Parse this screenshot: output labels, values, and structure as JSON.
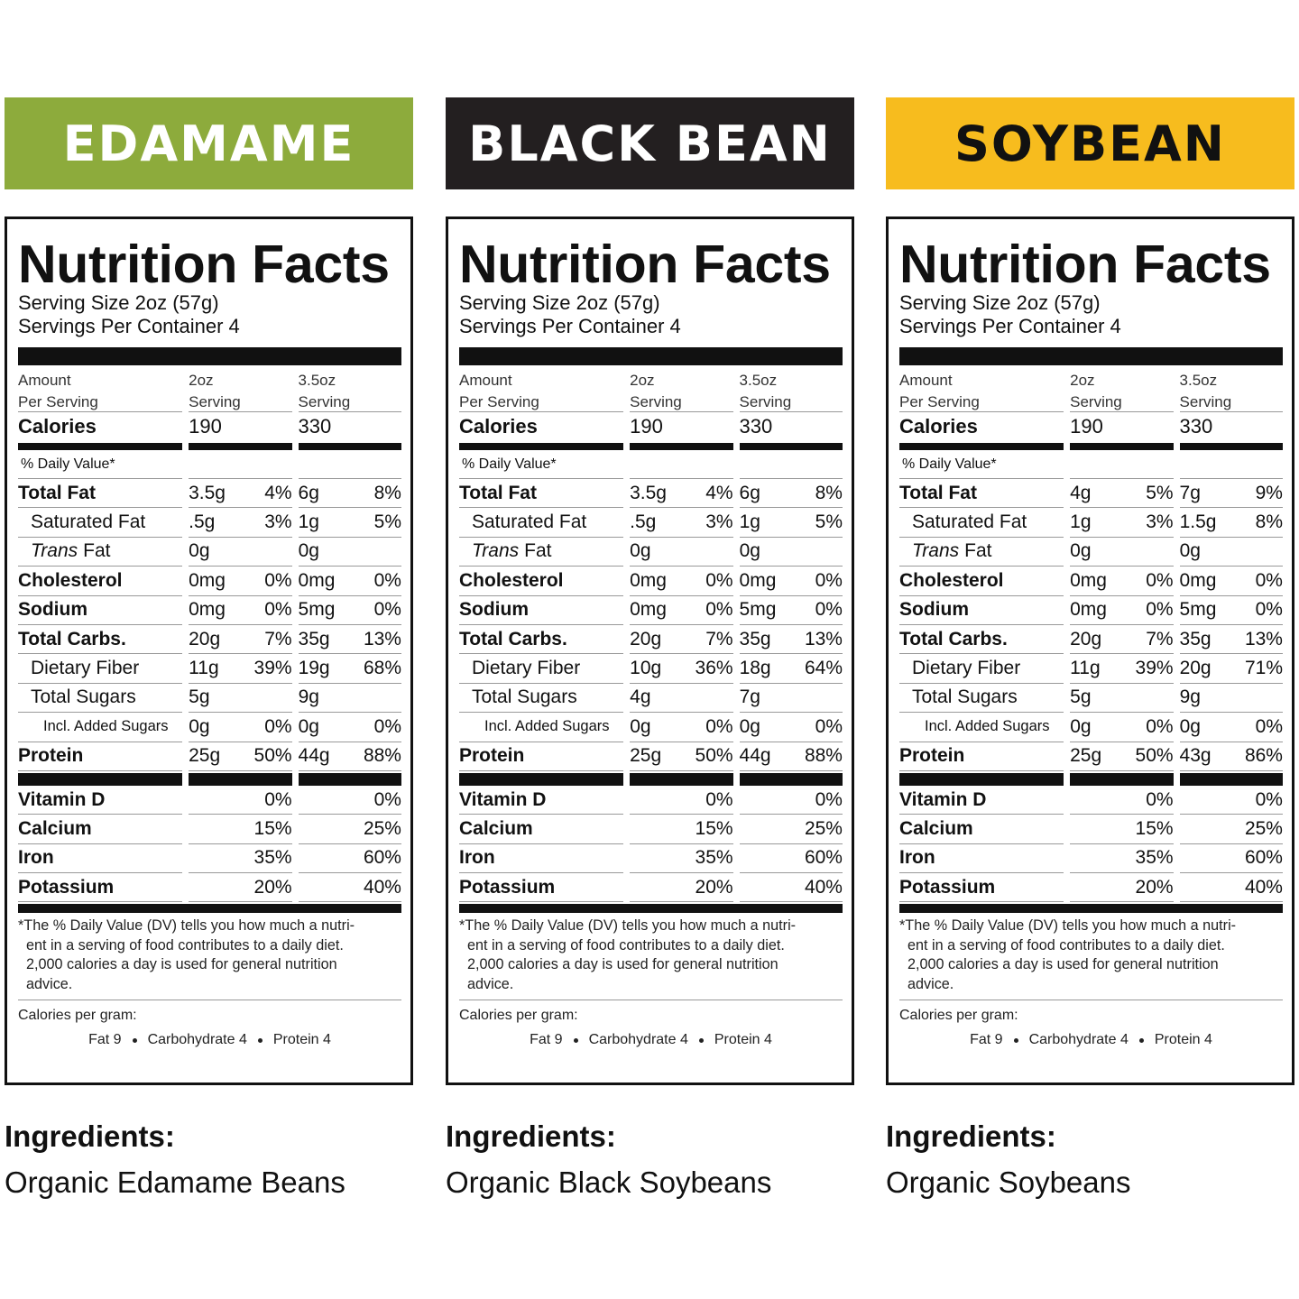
{
  "panels": [
    {
      "name": "EDAMAME",
      "label": {
        "title": "Nutrition Facts",
        "serving_size": "Serving Size 2oz (57g)",
        "servings": "Servings Per Container 4",
        "header": [
          [
            "Amount",
            "Per Serving"
          ],
          [
            "2oz",
            "Serving"
          ],
          [
            "3.5oz",
            "Serving"
          ]
        ],
        "calories": {
          "label": "Calories",
          "values": [
            "190",
            "330"
          ]
        },
        "dv_heading": "% Daily Value*",
        "nutrients": [
          {
            "label": "Total Fat",
            "values": [
              [
                "3.5g",
                "4%"
              ],
              [
                "6g",
                "8%"
              ]
            ],
            "sub": [
              {
                "label": "Saturated Fat",
                "values": [
                  [
                    ".5g",
                    "3%"
                  ],
                  [
                    "1g",
                    "5%"
                  ]
                ]
              },
              {
                "label_parts": [
                  "Trans",
                  "Fat"
                ],
                "values": [
                  [
                    "0g",
                    null
                  ],
                  [
                    "0g",
                    null
                  ]
                ]
              }
            ]
          },
          {
            "label": "Cholesterol",
            "values": [
              [
                "0mg",
                "0%"
              ],
              [
                "0mg",
                "0%"
              ]
            ]
          },
          {
            "label": "Sodium",
            "values": [
              [
                "0mg",
                "0%"
              ],
              [
                "5mg",
                "0%"
              ]
            ]
          },
          {
            "label": "Total Carbs.",
            "values": [
              [
                "20g",
                "7%"
              ],
              [
                "35g",
                "13%"
              ]
            ],
            "sub": [
              {
                "label": "Dietary Fiber",
                "values": [
                  [
                    "11g",
                    "39%"
                  ],
                  [
                    "19g",
                    "68%"
                  ]
                ]
              },
              {
                "label": "Total Sugars",
                "values": [
                  [
                    "5g",
                    null
                  ],
                  [
                    "9g",
                    null
                  ]
                ],
                "sub": [
                  {
                    "label": "Incl. Added Sugars",
                    "values": [
                      [
                        "0g",
                        "0%"
                      ],
                      [
                        "0g",
                        "0%"
                      ]
                    ]
                  }
                ]
              }
            ]
          },
          {
            "label": "Protein",
            "values": [
              [
                "25g",
                "50%"
              ],
              [
                "44g",
                "88%"
              ]
            ]
          }
        ],
        "vitamins": [
          {
            "label": "Vitamin D",
            "values": [
              "0%",
              "0%"
            ]
          },
          {
            "label": "Calcium",
            "values": [
              "15%",
              "25%"
            ]
          },
          {
            "label": "Iron",
            "values": [
              "35%",
              "60%"
            ]
          },
          {
            "label": "Potassium",
            "values": [
              "20%",
              "40%"
            ]
          }
        ],
        "footnote": [
          "*The % Daily Value (DV) tells you how much a nutri-",
          "ent in a serving of food contributes to a daily diet.",
          "2,000 calories a day is used for general nutrition",
          "advice."
        ],
        "calories_per_gram": {
          "label": "Calories per gram:",
          "items": [
            "Fat 9",
            "Carbohydrate 4",
            "Protein 4"
          ]
        }
      },
      "ingredients": {
        "heading": "Ingredients:",
        "text": "Organic Edamame Beans"
      }
    },
    {
      "name": "BLACK BEAN",
      "label": {
        "title": "Nutrition Facts",
        "serving_size": "Serving Size 2oz (57g)",
        "servings": "Servings Per Container 4",
        "header": [
          [
            "Amount",
            "Per Serving"
          ],
          [
            "2oz",
            "Serving"
          ],
          [
            "3.5oz",
            "Serving"
          ]
        ],
        "calories": {
          "label": "Calories",
          "values": [
            "190",
            "330"
          ]
        },
        "dv_heading": "% Daily Value*",
        "nutrients": [
          {
            "label": "Total Fat",
            "values": [
              [
                "3.5g",
                "4%"
              ],
              [
                "6g",
                "8%"
              ]
            ],
            "sub": [
              {
                "label": "Saturated Fat",
                "values": [
                  [
                    ".5g",
                    "3%"
                  ],
                  [
                    "1g",
                    "5%"
                  ]
                ]
              },
              {
                "label_parts": [
                  "Trans",
                  "Fat"
                ],
                "values": [
                  [
                    "0g",
                    null
                  ],
                  [
                    "0g",
                    null
                  ]
                ]
              }
            ]
          },
          {
            "label": "Cholesterol",
            "values": [
              [
                "0mg",
                "0%"
              ],
              [
                "0mg",
                "0%"
              ]
            ]
          },
          {
            "label": "Sodium",
            "values": [
              [
                "0mg",
                "0%"
              ],
              [
                "5mg",
                "0%"
              ]
            ]
          },
          {
            "label": "Total Carbs.",
            "values": [
              [
                "20g",
                "7%"
              ],
              [
                "35g",
                "13%"
              ]
            ],
            "sub": [
              {
                "label": "Dietary Fiber",
                "values": [
                  [
                    "10g",
                    "36%"
                  ],
                  [
                    "18g",
                    "64%"
                  ]
                ]
              },
              {
                "label": "Total Sugars",
                "values": [
                  [
                    "4g",
                    null
                  ],
                  [
                    "7g",
                    null
                  ]
                ],
                "sub": [
                  {
                    "label": "Incl. Added Sugars",
                    "values": [
                      [
                        "0g",
                        "0%"
                      ],
                      [
                        "0g",
                        "0%"
                      ]
                    ]
                  }
                ]
              }
            ]
          },
          {
            "label": "Protein",
            "values": [
              [
                "25g",
                "50%"
              ],
              [
                "44g",
                "88%"
              ]
            ]
          }
        ],
        "vitamins": [
          {
            "label": "Vitamin D",
            "values": [
              "0%",
              "0%"
            ]
          },
          {
            "label": "Calcium",
            "values": [
              "15%",
              "25%"
            ]
          },
          {
            "label": "Iron",
            "values": [
              "35%",
              "60%"
            ]
          },
          {
            "label": "Potassium",
            "values": [
              "20%",
              "40%"
            ]
          }
        ],
        "footnote": [
          "*The % Daily Value (DV) tells you how much a nutri-",
          "ent in a serving of food contributes to a daily diet.",
          "2,000 calories a day is used for general nutrition",
          "advice."
        ],
        "calories_per_gram": {
          "label": "Calories per gram:",
          "items": [
            "Fat 9",
            "Carbohydrate 4",
            "Protein 4"
          ]
        }
      },
      "ingredients": {
        "heading": "Ingredients:",
        "text": "Organic Black Soybeans"
      }
    },
    {
      "name": "SOYBEAN",
      "label": {
        "title": "Nutrition Facts",
        "serving_size": "Serving Size 2oz (57g)",
        "servings": "Servings Per Container 4",
        "header": [
          [
            "Amount",
            "Per Serving"
          ],
          [
            "2oz",
            "Serving"
          ],
          [
            "3.5oz",
            "Serving"
          ]
        ],
        "calories": {
          "label": "Calories",
          "values": [
            "190",
            "330"
          ]
        },
        "dv_heading": "% Daily Value*",
        "nutrients": [
          {
            "label": "Total Fat",
            "values": [
              [
                "4g",
                "5%"
              ],
              [
                "7g",
                "9%"
              ]
            ],
            "sub": [
              {
                "label": "Saturated Fat",
                "values": [
                  [
                    "1g",
                    "3%"
                  ],
                  [
                    "1.5g",
                    "8%"
                  ]
                ]
              },
              {
                "label_parts": [
                  "Trans",
                  "Fat"
                ],
                "values": [
                  [
                    "0g",
                    null
                  ],
                  [
                    "0g",
                    null
                  ]
                ]
              }
            ]
          },
          {
            "label": "Cholesterol",
            "values": [
              [
                "0mg",
                "0%"
              ],
              [
                "0mg",
                "0%"
              ]
            ]
          },
          {
            "label": "Sodium",
            "values": [
              [
                "0mg",
                "0%"
              ],
              [
                "5mg",
                "0%"
              ]
            ]
          },
          {
            "label": "Total Carbs.",
            "values": [
              [
                "20g",
                "7%"
              ],
              [
                "35g",
                "13%"
              ]
            ],
            "sub": [
              {
                "label": "Dietary Fiber",
                "values": [
                  [
                    "11g",
                    "39%"
                  ],
                  [
                    "20g",
                    "71%"
                  ]
                ]
              },
              {
                "label": "Total Sugars",
                "values": [
                  [
                    "5g",
                    null
                  ],
                  [
                    "9g",
                    null
                  ]
                ],
                "sub": [
                  {
                    "label": "Incl. Added Sugars",
                    "values": [
                      [
                        "0g",
                        "0%"
                      ],
                      [
                        "0g",
                        "0%"
                      ]
                    ]
                  }
                ]
              }
            ]
          },
          {
            "label": "Protein",
            "values": [
              [
                "25g",
                "50%"
              ],
              [
                "43g",
                "86%"
              ]
            ]
          }
        ],
        "vitamins": [
          {
            "label": "Vitamin D",
            "values": [
              "0%",
              "0%"
            ]
          },
          {
            "label": "Calcium",
            "values": [
              "15%",
              "25%"
            ]
          },
          {
            "label": "Iron",
            "values": [
              "35%",
              "60%"
            ]
          },
          {
            "label": "Potassium",
            "values": [
              "20%",
              "40%"
            ]
          }
        ],
        "footnote": [
          "*The % Daily Value (DV) tells you how much a nutri-",
          "ent in a serving of food contributes to a daily diet.",
          "2,000 calories a day is used for general nutrition",
          "advice."
        ],
        "calories_per_gram": {
          "label": "Calories per gram:",
          "items": [
            "Fat 9",
            "Carbohydrate 4",
            "Protein 4"
          ]
        }
      },
      "ingredients": {
        "heading": "Ingredients:",
        "text": "Organic Soybeans"
      }
    }
  ]
}
